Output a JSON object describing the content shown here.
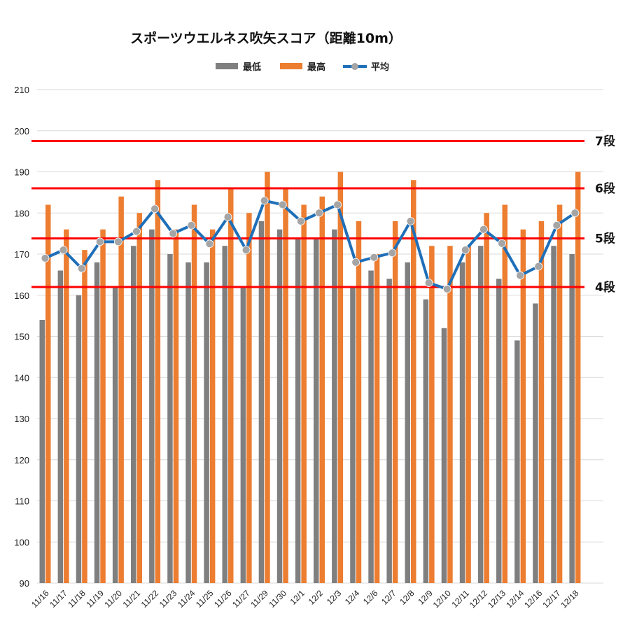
{
  "colors": {
    "min": "#7f7f7f",
    "max": "#ed7d31",
    "avg": "#1f6fb8",
    "avg_marker": "#a5a5a5",
    "ref_line": "#ff0000",
    "grid": "#d9d9d9"
  },
  "chart_data": {
    "type": "bar",
    "title": "スポーツウエルネス吹矢スコア（距離10m）",
    "ylim": [
      90,
      210
    ],
    "yticks": [
      90,
      100,
      110,
      120,
      130,
      140,
      150,
      160,
      170,
      180,
      190,
      200,
      210
    ],
    "grid": true,
    "legend_placement": "top-center",
    "categories": [
      "11/16",
      "11/17",
      "11/18",
      "11/19",
      "11/20",
      "11/21",
      "11/22",
      "11/23",
      "11/24",
      "11/25",
      "11/26",
      "11/27",
      "11/29",
      "11/30",
      "12/1",
      "12/2",
      "12/3",
      "12/4",
      "12/6",
      "12/7",
      "12/8",
      "12/9",
      "12/10",
      "12/11",
      "12/12",
      "12/13",
      "12/14",
      "12/16",
      "12/17",
      "12/18"
    ],
    "series": [
      {
        "name": "最低",
        "type": "bar",
        "values": [
          154,
          166,
          160,
          168,
          162,
          172,
          176,
          170,
          168,
          168,
          172,
          162,
          178,
          176,
          174,
          174,
          176,
          162,
          166,
          164,
          168,
          159,
          152,
          168,
          172,
          164,
          149,
          158,
          172,
          170
        ]
      },
      {
        "name": "最高",
        "type": "bar",
        "values": [
          182,
          176,
          171,
          176,
          184,
          180,
          188,
          176,
          182,
          176,
          186,
          180,
          190,
          186,
          182,
          184,
          190,
          178,
          170,
          178,
          188,
          172,
          172,
          172,
          180,
          182,
          176,
          178,
          182,
          190
        ]
      },
      {
        "name": "平均",
        "type": "line",
        "values": [
          169,
          171,
          166.5,
          173,
          173,
          175.5,
          181,
          175,
          177,
          172.5,
          179,
          171,
          183,
          182,
          178,
          180,
          182,
          168,
          169.2,
          170.3,
          178,
          163,
          161.5,
          171,
          176,
          172.6,
          164.8,
          167,
          177,
          180
        ]
      }
    ],
    "reference_lines": [
      {
        "label": "7段",
        "value": 197.5
      },
      {
        "label": "6段",
        "value": 186
      },
      {
        "label": "5段",
        "value": 173.8
      },
      {
        "label": "4段",
        "value": 162
      }
    ]
  }
}
